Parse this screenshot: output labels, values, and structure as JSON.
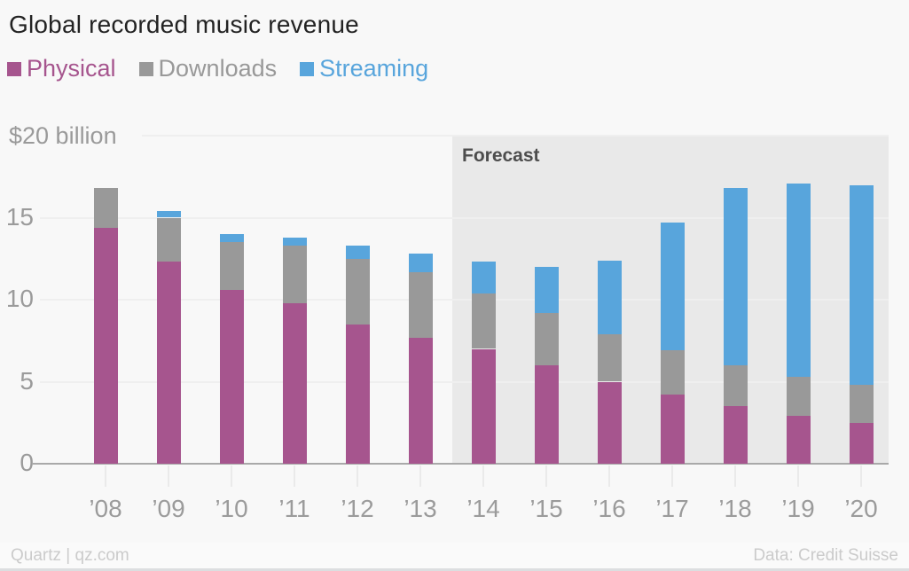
{
  "header": {
    "title": "Global recorded music revenue"
  },
  "chart_data": {
    "type": "bar",
    "stacked": true,
    "title": "Global recorded music revenue",
    "ylabel": "$20 billion",
    "xlabel": "",
    "ylim": [
      0,
      20
    ],
    "yticks": [
      0,
      5,
      10,
      15
    ],
    "grid": true,
    "legend_position": "top",
    "categories": [
      "’08",
      "’09",
      "’10",
      "’11",
      "’12",
      "’13",
      "’14",
      "’15",
      "’16",
      "’17",
      "’18",
      "’19",
      "’20"
    ],
    "series": [
      {
        "name": "Physical",
        "color": "#a6558e",
        "values": [
          14.4,
          12.3,
          10.6,
          9.8,
          8.5,
          7.7,
          7.0,
          6.0,
          5.0,
          4.2,
          3.5,
          2.9,
          2.5
        ]
      },
      {
        "name": "Downloads",
        "color": "#999999",
        "values": [
          2.4,
          2.7,
          2.9,
          3.5,
          4.0,
          4.0,
          3.4,
          3.2,
          2.9,
          2.7,
          2.5,
          2.4,
          2.3
        ]
      },
      {
        "name": "Streaming",
        "color": "#58a5dc",
        "values": [
          0.0,
          0.4,
          0.5,
          0.5,
          0.8,
          1.1,
          1.9,
          2.8,
          4.5,
          7.8,
          10.8,
          11.8,
          12.2
        ]
      }
    ],
    "forecast": {
      "label": "Forecast",
      "start_category": "’14",
      "region_color": "#e9e9e9"
    },
    "colors": {
      "background": "#f8f8f8",
      "gridline": "#efefef",
      "baseline": "#a9a9a9",
      "axis_label": "#9b9b9b",
      "title": "#232323",
      "forecast_label": "#4d4d4d"
    }
  },
  "footer": {
    "left": "Quartz | qz.com",
    "right": "Data: Credit Suisse"
  }
}
